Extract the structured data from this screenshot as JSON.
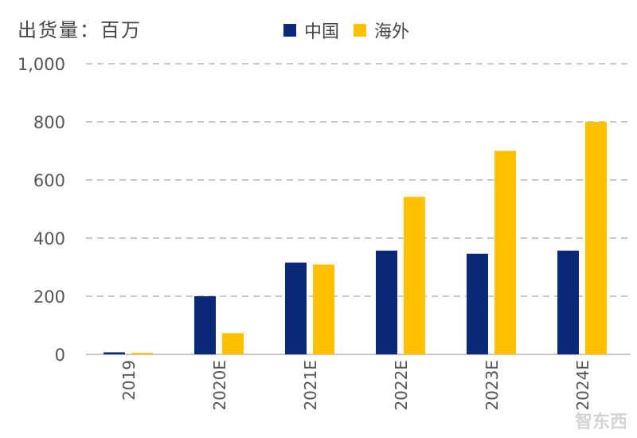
{
  "chart_data": {
    "type": "bar",
    "title": "",
    "unit_label": "出货量：百万",
    "xlabel": "",
    "ylabel": "",
    "ylim": [
      0,
      1000
    ],
    "yticks": [
      0,
      200,
      400,
      600,
      800,
      1000
    ],
    "ytick_labels": [
      "0",
      "200",
      "400",
      "600",
      "800",
      "1,000"
    ],
    "grid": true,
    "legend_position": "top",
    "categories": [
      "2019",
      "2020E",
      "2021E",
      "2022E",
      "2023E",
      "2024E"
    ],
    "series": [
      {
        "name": "中国",
        "color": "#0a2a78",
        "values": [
          7,
          200,
          316,
          357,
          346,
          357
        ]
      },
      {
        "name": "海外",
        "color": "#ffc000",
        "values": [
          5,
          73,
          309,
          542,
          700,
          800
        ]
      }
    ]
  },
  "watermark": "智东西"
}
